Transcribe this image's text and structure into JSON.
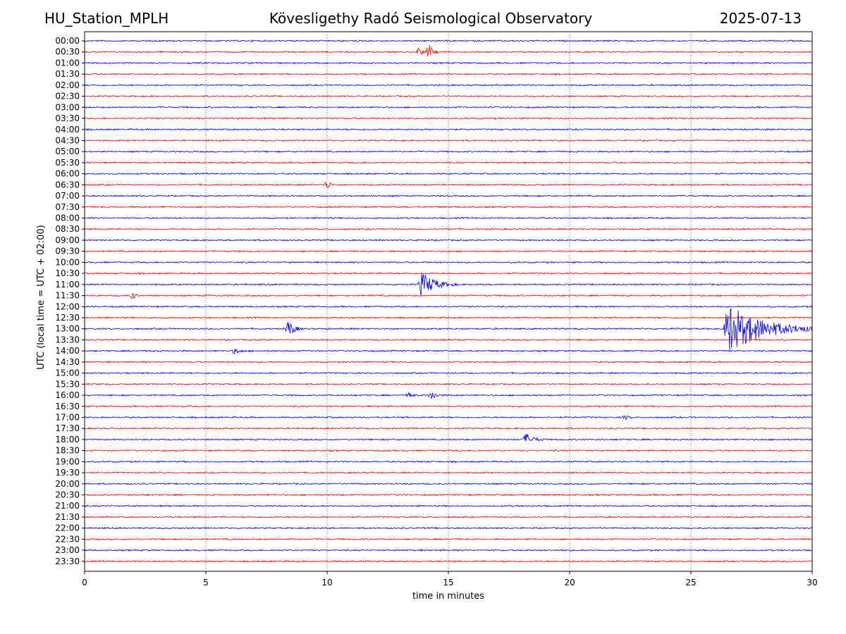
{
  "header": {
    "station": "HU_Station_MPLH",
    "observatory": "Kövesligethy Radó Seismological Observatory",
    "date": "2025-07-13"
  },
  "chart_data": {
    "type": "line",
    "title": "Kövesligethy Radó Seismological Observatory",
    "xlabel": "time in minutes",
    "ylabel": "UTC (local time = UTC + 02:00)",
    "xlim": [
      0,
      30
    ],
    "x_ticks": [
      "0",
      "5",
      "10",
      "15",
      "20",
      "25",
      "30"
    ],
    "grid": "vertical dotted at 5-minute intervals",
    "colors": {
      "even_rows": "#0000ff",
      "odd_rows": "#ff0000"
    },
    "row_labels": [
      "00:00",
      "00:30",
      "01:00",
      "01:30",
      "02:00",
      "02:30",
      "03:00",
      "03:30",
      "04:00",
      "04:30",
      "05:00",
      "05:30",
      "06:00",
      "06:30",
      "07:00",
      "07:30",
      "08:00",
      "08:30",
      "09:00",
      "09:30",
      "10:00",
      "10:30",
      "11:00",
      "11:30",
      "12:00",
      "12:30",
      "13:00",
      "13:30",
      "14:00",
      "14:30",
      "15:00",
      "15:30",
      "16:00",
      "16:30",
      "17:00",
      "17:30",
      "18:00",
      "18:30",
      "19:00",
      "19:30",
      "20:00",
      "20:30",
      "21:00",
      "21:30",
      "22:00",
      "22:30",
      "23:00",
      "23:30"
    ],
    "events": [
      {
        "row": 1,
        "minute": 13.8,
        "amplitude": 8,
        "duration": 0.3
      },
      {
        "row": 1,
        "minute": 14.2,
        "amplitude": 12,
        "duration": 0.4
      },
      {
        "row": 13,
        "minute": 10.0,
        "amplitude": 7,
        "duration": 0.3
      },
      {
        "row": 22,
        "minute": 13.9,
        "amplitude": 18,
        "duration": 1.5
      },
      {
        "row": 23,
        "minute": 2.0,
        "amplitude": 6,
        "duration": 0.3
      },
      {
        "row": 26,
        "minute": 8.4,
        "amplitude": 14,
        "duration": 0.6
      },
      {
        "row": 26,
        "minute": 26.5,
        "amplitude": 36,
        "duration": 4.0
      },
      {
        "row": 28,
        "minute": 6.2,
        "amplitude": 4,
        "duration": 0.6
      },
      {
        "row": 32,
        "minute": 14.3,
        "amplitude": 7,
        "duration": 0.5
      },
      {
        "row": 32,
        "minute": 13.4,
        "amplitude": 4,
        "duration": 0.4
      },
      {
        "row": 34,
        "minute": 22.3,
        "amplitude": 3,
        "duration": 0.4
      },
      {
        "row": 36,
        "minute": 18.2,
        "amplitude": 9,
        "duration": 0.8
      }
    ]
  }
}
